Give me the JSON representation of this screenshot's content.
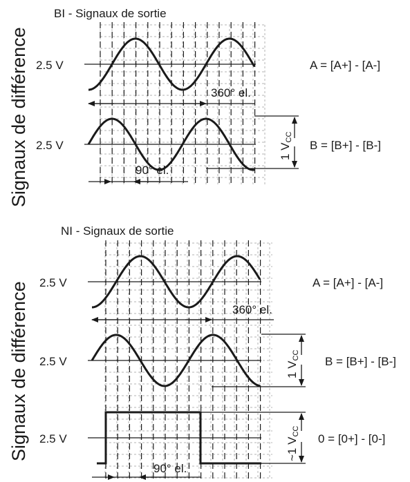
{
  "colors": {
    "ink": "#1a1a1a",
    "grid": "#b3b3b3",
    "background": "#ffffff"
  },
  "top": {
    "title": "BI - Signaux de sortie",
    "side_label": "Signaux de différence",
    "ref_a": "2.5 V",
    "ref_b": "2.5 V",
    "eq_a": "A = [A+] - [A-]",
    "eq_b": "B = [B+] - [B-]",
    "period_label": "360° el.",
    "phase_label": "90° el.",
    "amp_prefix": "1 V",
    "amp_sub": "CC"
  },
  "bottom": {
    "title": "NI - Signaux de sortie",
    "side_label": "Signaux de différence",
    "ref_a": "2.5 V",
    "ref_b": "2.5 V",
    "ref_0": "2.5 V",
    "eq_a": "A = [A+] - [A-]",
    "eq_b": "B = [B+] - [B-]",
    "eq_0": "0 = [0+] - [0-]",
    "period_label": "360° el.",
    "phase_label": "90° el.",
    "amp_prefix": "1 V",
    "amp_sub": "CC",
    "amp0_prefix": "~1 V",
    "amp0_sub": "CC"
  }
}
